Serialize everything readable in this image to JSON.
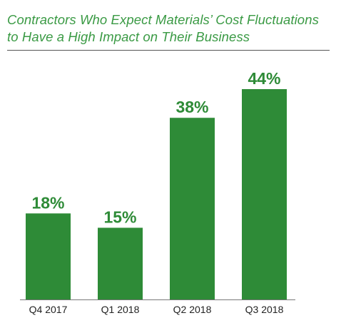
{
  "colors": {
    "title": "#3a9a44",
    "bar": "#2e8b37",
    "bar_label": "#2e8b37",
    "axis": "#777777",
    "tick": "#222222"
  },
  "chart_data": {
    "type": "bar",
    "title_lines": [
      "Contractors Who Expect Materials’ Cost Fluctuations",
      "to Have a High Impact on Their Business"
    ],
    "categories": [
      "Q4 2017",
      "Q1 2018",
      "Q2 2018",
      "Q3 2018"
    ],
    "values": [
      18,
      15,
      38,
      44
    ],
    "value_labels": [
      "18%",
      "15%",
      "38%",
      "44%"
    ],
    "unit": "%",
    "ylim": [
      0,
      44
    ],
    "grid": false,
    "legend": "none"
  }
}
